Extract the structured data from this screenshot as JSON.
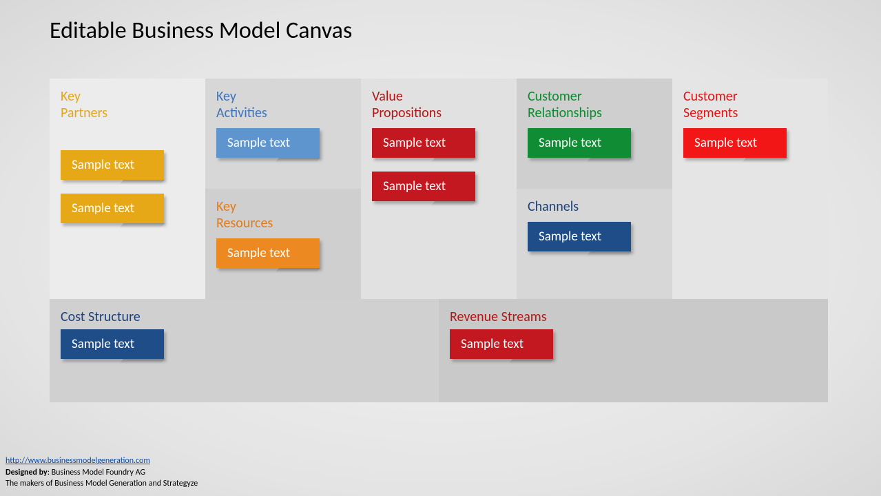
{
  "title": "Editable Business Model Canvas",
  "palette": {
    "bg_shades": [
      "#ececec",
      "#e1e1e1",
      "#d7d7d7",
      "#cfcfcf",
      "#c9c9c9"
    ],
    "note_text": "#ffffff"
  },
  "blocks": {
    "kp": {
      "label": "Key\nPartners",
      "label_color": "#e3a716",
      "bg": "#ececec",
      "notes": [
        {
          "text": "Sample text",
          "color": "#e6a817"
        },
        {
          "text": "Sample text",
          "color": "#e6a817"
        }
      ]
    },
    "ka": {
      "label": "Key\nActivities",
      "label_color": "#3d73b8",
      "bg": "#d7d7d7",
      "notes": [
        {
          "text": "Sample text",
          "color": "#5f95cf"
        }
      ]
    },
    "kr": {
      "label": "Key\nResources",
      "label_color": "#e07b1d",
      "bg": "#cfcfcf",
      "notes": [
        {
          "text": "Sample text",
          "color": "#ec8a21"
        }
      ]
    },
    "vp": {
      "label": "Value\nPropositions",
      "label_color": "#b01717",
      "bg": "#e1e1e1",
      "notes": [
        {
          "text": "Sample text",
          "color": "#c3181f"
        },
        {
          "text": "Sample text",
          "color": "#c3181f"
        }
      ]
    },
    "cr": {
      "label": "Customer\nRelationships",
      "label_color": "#0b8a2e",
      "bg": "#cfcfcf",
      "notes": [
        {
          "text": "Sample text",
          "color": "#108c34"
        }
      ]
    },
    "ch": {
      "label": "Channels",
      "label_color": "#1f3f78",
      "bg": "#d7d7d7",
      "notes": [
        {
          "text": "Sample text",
          "color": "#1f4d88"
        }
      ]
    },
    "cs": {
      "label": "Customer\nSegments",
      "label_color": "#e21414",
      "bg": "#e5e5e5",
      "notes": [
        {
          "text": "Sample text",
          "color": "#f31616"
        }
      ]
    },
    "cost": {
      "label": "Cost Structure",
      "label_color": "#1f3f78",
      "bg": "#d0d0d0",
      "notes": [
        {
          "text": "Sample text",
          "color": "#1f4d88"
        }
      ]
    },
    "rev": {
      "label": "Revenue Streams",
      "label_color": "#b01717",
      "bg": "#c9c9c9",
      "notes": [
        {
          "text": "Sample text",
          "color": "#c3181f"
        }
      ]
    }
  },
  "footer": {
    "link_text": "http://www.businessmodelgeneration.com",
    "link_href": "http://www.businessmodelgeneration.com",
    "line2_prefix": "Designed by",
    "line2_rest": ": Business Model Foundry AG",
    "line3": "The makers of Business Model Generation and Strategyze"
  }
}
